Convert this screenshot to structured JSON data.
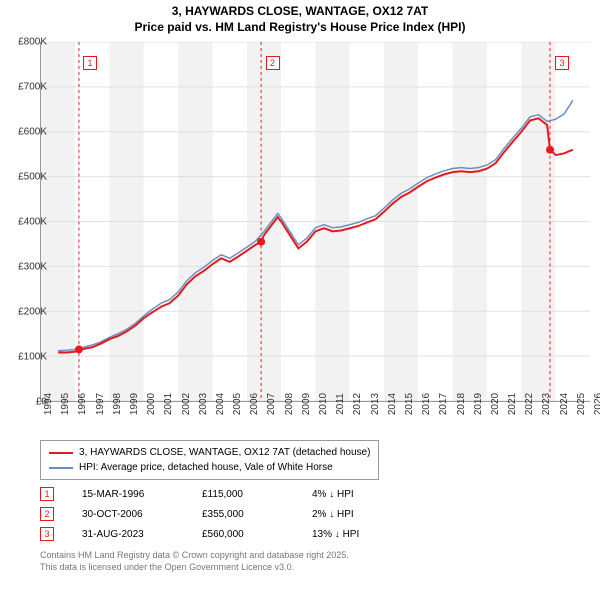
{
  "title_line1": "3, HAYWARDS CLOSE, WANTAGE, OX12 7AT",
  "title_line2": "Price paid vs. HM Land Registry's House Price Index (HPI)",
  "chart": {
    "type": "line",
    "x_start": 1994,
    "x_end": 2026,
    "y_start": 0,
    "y_end": 800000,
    "y_ticks": [
      "£0",
      "£100K",
      "£200K",
      "£300K",
      "£400K",
      "£500K",
      "£600K",
      "£700K",
      "£800K"
    ],
    "x_ticks": [
      "1994",
      "1995",
      "1996",
      "1997",
      "1998",
      "1999",
      "2000",
      "2001",
      "2002",
      "2003",
      "2004",
      "2005",
      "2006",
      "2007",
      "2008",
      "2009",
      "2010",
      "2011",
      "2012",
      "2013",
      "2014",
      "2015",
      "2016",
      "2017",
      "2018",
      "2019",
      "2020",
      "2021",
      "2022",
      "2023",
      "2024",
      "2025",
      "2026"
    ],
    "grid_color": "#e0e0e0",
    "alt_band_color": "#f2f2f2",
    "background_color": "#ffffff",
    "series": [
      {
        "name": "3, HAYWARDS CLOSE, WANTAGE, OX12 7AT (detached house)",
        "color": "#e41a1c",
        "width": 2,
        "points": [
          [
            1995.0,
            108000
          ],
          [
            1995.5,
            108000
          ],
          [
            1996.0,
            110000
          ],
          [
            1996.2,
            115000
          ],
          [
            1996.5,
            116000
          ],
          [
            1997.0,
            120000
          ],
          [
            1997.5,
            128000
          ],
          [
            1998.0,
            138000
          ],
          [
            1998.5,
            145000
          ],
          [
            1999.0,
            155000
          ],
          [
            1999.5,
            168000
          ],
          [
            2000.0,
            185000
          ],
          [
            2000.5,
            198000
          ],
          [
            2001.0,
            210000
          ],
          [
            2001.5,
            218000
          ],
          [
            2002.0,
            235000
          ],
          [
            2002.5,
            260000
          ],
          [
            2003.0,
            278000
          ],
          [
            2003.5,
            290000
          ],
          [
            2004.0,
            305000
          ],
          [
            2004.5,
            318000
          ],
          [
            2005.0,
            310000
          ],
          [
            2005.5,
            322000
          ],
          [
            2006.0,
            335000
          ],
          [
            2006.5,
            348000
          ],
          [
            2006.83,
            355000
          ],
          [
            2007.0,
            370000
          ],
          [
            2007.5,
            395000
          ],
          [
            2007.8,
            410000
          ],
          [
            2008.0,
            400000
          ],
          [
            2008.5,
            370000
          ],
          [
            2009.0,
            340000
          ],
          [
            2009.5,
            355000
          ],
          [
            2010.0,
            378000
          ],
          [
            2010.5,
            385000
          ],
          [
            2011.0,
            378000
          ],
          [
            2011.5,
            380000
          ],
          [
            2012.0,
            385000
          ],
          [
            2012.5,
            390000
          ],
          [
            2013.0,
            398000
          ],
          [
            2013.5,
            405000
          ],
          [
            2014.0,
            422000
          ],
          [
            2014.5,
            440000
          ],
          [
            2015.0,
            455000
          ],
          [
            2015.5,
            465000
          ],
          [
            2016.0,
            478000
          ],
          [
            2016.5,
            490000
          ],
          [
            2017.0,
            498000
          ],
          [
            2017.5,
            505000
          ],
          [
            2018.0,
            510000
          ],
          [
            2018.5,
            512000
          ],
          [
            2019.0,
            510000
          ],
          [
            2019.5,
            512000
          ],
          [
            2020.0,
            518000
          ],
          [
            2020.5,
            530000
          ],
          [
            2021.0,
            555000
          ],
          [
            2021.5,
            578000
          ],
          [
            2022.0,
            600000
          ],
          [
            2022.5,
            625000
          ],
          [
            2023.0,
            630000
          ],
          [
            2023.5,
            615000
          ],
          [
            2023.67,
            560000
          ],
          [
            2024.0,
            548000
          ],
          [
            2024.5,
            552000
          ],
          [
            2025.0,
            560000
          ]
        ]
      },
      {
        "name": "HPI: Average price, detached house, Vale of White Horse",
        "color": "#6a8fc5",
        "width": 1.5,
        "points": [
          [
            1995.0,
            112000
          ],
          [
            1995.5,
            113000
          ],
          [
            1996.0,
            115000
          ],
          [
            1996.5,
            120000
          ],
          [
            1997.0,
            125000
          ],
          [
            1997.5,
            132000
          ],
          [
            1998.0,
            142000
          ],
          [
            1998.5,
            150000
          ],
          [
            1999.0,
            160000
          ],
          [
            1999.5,
            173000
          ],
          [
            2000.0,
            190000
          ],
          [
            2000.5,
            205000
          ],
          [
            2001.0,
            218000
          ],
          [
            2001.5,
            226000
          ],
          [
            2002.0,
            243000
          ],
          [
            2002.5,
            268000
          ],
          [
            2003.0,
            286000
          ],
          [
            2003.5,
            298000
          ],
          [
            2004.0,
            313000
          ],
          [
            2004.5,
            326000
          ],
          [
            2005.0,
            318000
          ],
          [
            2005.5,
            330000
          ],
          [
            2006.0,
            343000
          ],
          [
            2006.5,
            356000
          ],
          [
            2007.0,
            378000
          ],
          [
            2007.5,
            403000
          ],
          [
            2007.8,
            418000
          ],
          [
            2008.0,
            408000
          ],
          [
            2008.5,
            378000
          ],
          [
            2009.0,
            348000
          ],
          [
            2009.5,
            363000
          ],
          [
            2010.0,
            386000
          ],
          [
            2010.5,
            393000
          ],
          [
            2011.0,
            386000
          ],
          [
            2011.5,
            388000
          ],
          [
            2012.0,
            393000
          ],
          [
            2012.5,
            398000
          ],
          [
            2013.0,
            406000
          ],
          [
            2013.5,
            413000
          ],
          [
            2014.0,
            430000
          ],
          [
            2014.5,
            448000
          ],
          [
            2015.0,
            463000
          ],
          [
            2015.5,
            473000
          ],
          [
            2016.0,
            486000
          ],
          [
            2016.5,
            498000
          ],
          [
            2017.0,
            506000
          ],
          [
            2017.5,
            513000
          ],
          [
            2018.0,
            518000
          ],
          [
            2018.5,
            520000
          ],
          [
            2019.0,
            518000
          ],
          [
            2019.5,
            520000
          ],
          [
            2020.0,
            526000
          ],
          [
            2020.5,
            538000
          ],
          [
            2021.0,
            563000
          ],
          [
            2021.5,
            586000
          ],
          [
            2022.0,
            608000
          ],
          [
            2022.5,
            633000
          ],
          [
            2023.0,
            638000
          ],
          [
            2023.5,
            623000
          ],
          [
            2024.0,
            628000
          ],
          [
            2024.5,
            640000
          ],
          [
            2025.0,
            670000
          ]
        ]
      }
    ],
    "sale_markers": [
      {
        "n": "1",
        "year": 1996.21,
        "price": 115000
      },
      {
        "n": "2",
        "year": 2006.83,
        "price": 355000
      },
      {
        "n": "3",
        "year": 2023.67,
        "price": 560000
      }
    ],
    "vline_color": "#e41a1c"
  },
  "legend": {
    "series1_label": "3, HAYWARDS CLOSE, WANTAGE, OX12 7AT (detached house)",
    "series1_color": "#e41a1c",
    "series2_label": "HPI: Average price, detached house, Vale of White Horse",
    "series2_color": "#6a8fc5"
  },
  "sales": [
    {
      "n": "1",
      "date": "15-MAR-1996",
      "price": "£115,000",
      "diff": "4% ↓ HPI"
    },
    {
      "n": "2",
      "date": "30-OCT-2006",
      "price": "£355,000",
      "diff": "2% ↓ HPI"
    },
    {
      "n": "3",
      "date": "31-AUG-2023",
      "price": "£560,000",
      "diff": "13% ↓ HPI"
    }
  ],
  "footer_line1": "Contains HM Land Registry data © Crown copyright and database right 2025.",
  "footer_line2": "This data is licensed under the Open Government Licence v3.0."
}
